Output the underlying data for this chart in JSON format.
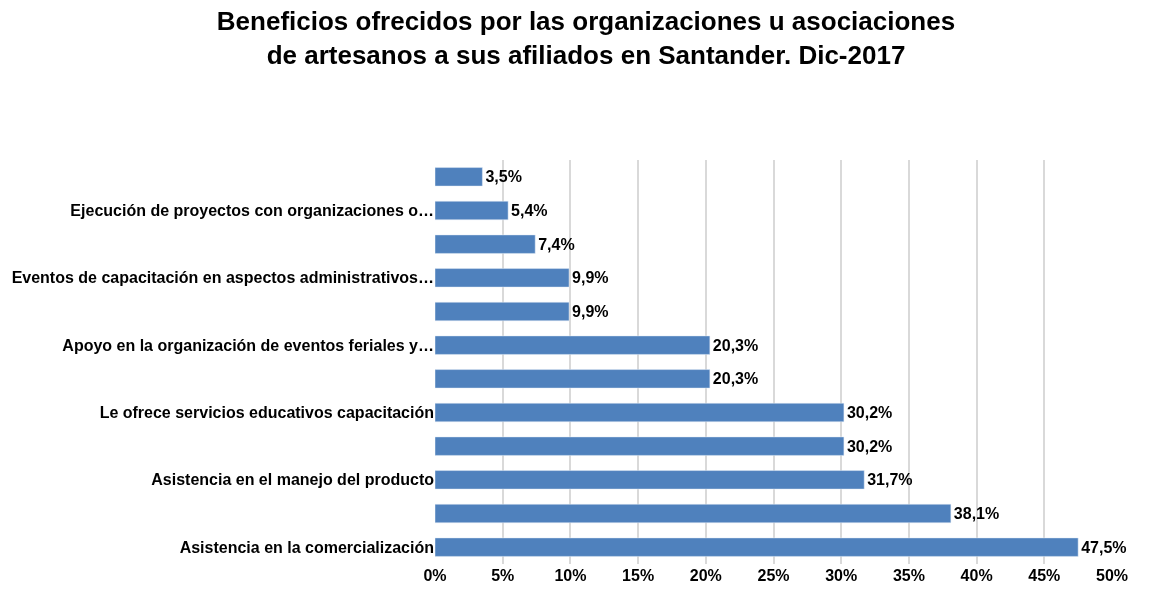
{
  "chart_data": {
    "type": "bar",
    "orientation": "horizontal",
    "title": "Beneficios ofrecidos por las organizaciones u asociaciones\nde artesanos a sus afiliados en Santander. Dic-2017",
    "categories": [
      null,
      "Ejecución de proyectos con organizaciones o…",
      null,
      "Eventos de capacitación en aspectos administrativos…",
      null,
      "Apoyo en la organización de eventos feriales y…",
      null,
      "Le ofrece servicios educativos capacitación",
      null,
      "Asistencia en el manejo del producto",
      null,
      "Asistencia en la comercialización"
    ],
    "values": [
      3.5,
      5.4,
      7.4,
      9.9,
      9.9,
      20.3,
      20.3,
      30.2,
      30.2,
      31.7,
      38.1,
      47.5
    ],
    "value_labels": [
      "3,5%",
      "5,4%",
      "7,4%",
      "9,9%",
      "9,9%",
      "20,3%",
      "20,3%",
      "30,2%",
      "30,2%",
      "31,7%",
      "38,1%",
      "47,5%"
    ],
    "color": "#4f81bd",
    "xlim": [
      0,
      50
    ],
    "xticks": [
      {
        "value": 0,
        "label": "0%"
      },
      {
        "value": 5,
        "label": "5%"
      },
      {
        "value": 10,
        "label": "10%"
      },
      {
        "value": 15,
        "label": "15%"
      },
      {
        "value": 20,
        "label": "20%"
      },
      {
        "value": 25,
        "label": "25%"
      },
      {
        "value": 30,
        "label": "30%"
      },
      {
        "value": 35,
        "label": "35%"
      },
      {
        "value": 40,
        "label": "40%"
      },
      {
        "value": 45,
        "label": "45%"
      },
      {
        "value": 50,
        "label": "50%"
      }
    ],
    "grid": "x",
    "legend": false
  }
}
